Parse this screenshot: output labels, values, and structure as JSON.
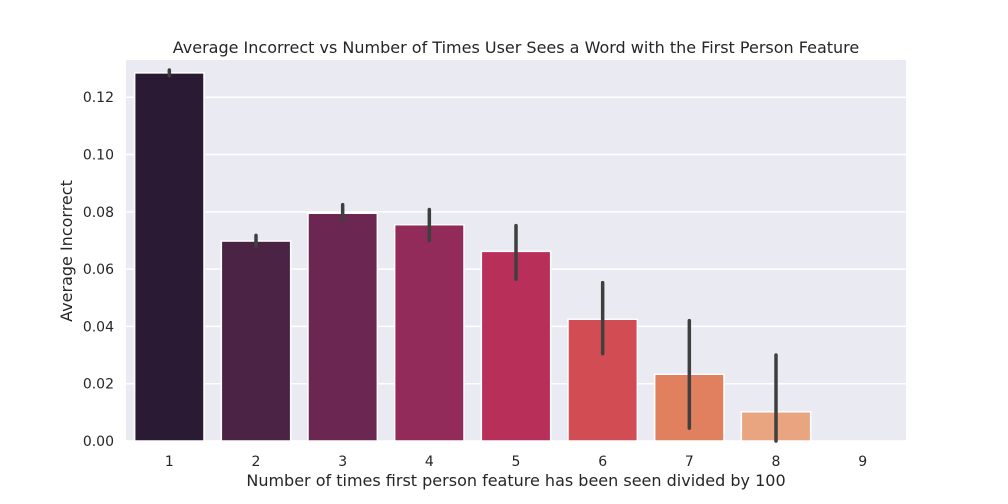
{
  "chart_data": {
    "type": "bar",
    "title": "Average Incorrect vs Number of Times User Sees a Word with the First Person Feature",
    "xlabel": "Number of times first person feature has been seen divided by 100",
    "ylabel": "Average Incorrect",
    "categories": [
      "1",
      "2",
      "3",
      "4",
      "5",
      "6",
      "7",
      "8",
      "9"
    ],
    "values": [
      0.1285,
      0.0698,
      0.0795,
      0.0755,
      0.0662,
      0.0425,
      0.0233,
      0.0102,
      0.0
    ],
    "error_bars": [
      [
        0.1275,
        0.1295
      ],
      [
        0.068,
        0.0718
      ],
      [
        0.077,
        0.0825
      ],
      [
        0.07,
        0.0808
      ],
      [
        0.0565,
        0.0752
      ],
      [
        0.0305,
        0.0553
      ],
      [
        0.0045,
        0.042
      ],
      [
        0.0,
        0.03
      ],
      [
        0.0,
        0.0
      ]
    ],
    "colors": [
      "#2b1a33",
      "#4a2345",
      "#6b2752",
      "#922a5a",
      "#b83059",
      "#d14d53",
      "#e0805f",
      "#e9a57f",
      "#f0c4a0"
    ],
    "ylim": [
      0,
      0.133
    ],
    "yticks": [
      "0.00",
      "0.02",
      "0.04",
      "0.06",
      "0.08",
      "0.10",
      "0.12"
    ],
    "grid": true,
    "background": "#eaeaf2",
    "error_color": "#3f3f3f"
  }
}
